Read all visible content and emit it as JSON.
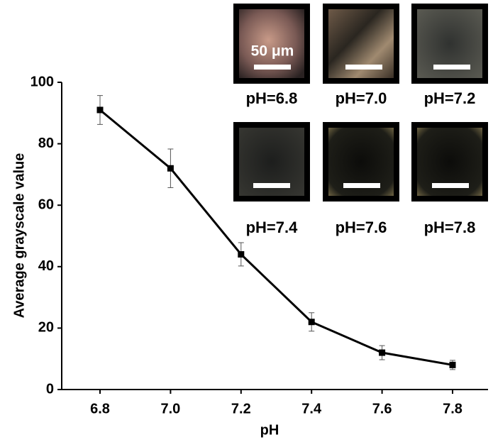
{
  "chart_data": {
    "type": "line",
    "x_label": "pH",
    "y_label": "Average grayscale value",
    "x": [
      6.8,
      7.0,
      7.2,
      7.4,
      7.6,
      7.8
    ],
    "series": [
      {
        "color": "#000000",
        "values": [
          91,
          72,
          44,
          22,
          12,
          8
        ],
        "errors": [
          4.7,
          6.3,
          3.8,
          3,
          2.3,
          1.5
        ]
      }
    ],
    "xlim": [
      6.7,
      7.9
    ],
    "xticks": [
      6.8,
      {
        "value": 7,
        "label": "7.0"
      },
      7.2,
      7.4,
      7.6,
      7.8
    ],
    "ylim": [
      0,
      100
    ],
    "yticks": [
      0,
      20,
      40,
      60,
      80,
      100
    ],
    "scale_bar_label": "50 μm",
    "inset_labels": [
      "pH=6.8",
      "pH=7.0",
      "pH=7.2",
      "pH=7.4",
      "pH=7.6",
      "pH=7.8"
    ]
  }
}
